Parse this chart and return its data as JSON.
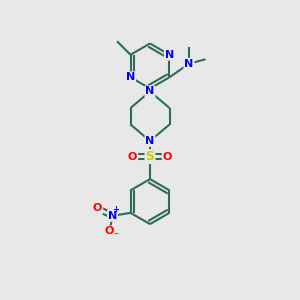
{
  "background_color": "#e8e8e8",
  "bond_color": "#2d6b5a",
  "bond_width": 1.5,
  "n_color": "#0000ff",
  "o_color": "#ff0000",
  "s_color": "#cccc00",
  "font_size_atom": 8,
  "figsize": [
    3.0,
    3.0
  ],
  "dpi": 100,
  "xlim": [
    0,
    10
  ],
  "ylim": [
    0,
    10
  ]
}
